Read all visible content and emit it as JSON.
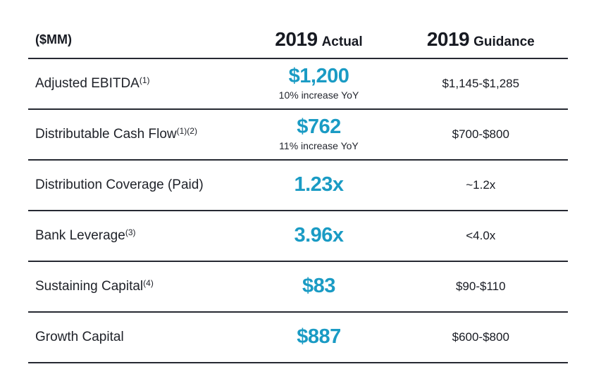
{
  "palette": {
    "accent": "#1a9bc4",
    "ink": "#171a22",
    "line": "#262932"
  },
  "header": {
    "unit_label": "($MM)",
    "actual": {
      "year": "2019",
      "label": "Actual"
    },
    "guidance": {
      "year": "2019",
      "label": "Guidance"
    }
  },
  "rows": [
    {
      "label": "Adjusted EBITDA",
      "footnote": "(1)",
      "actual": "$1,200",
      "actual_note": "10% increase YoY",
      "guidance": "$1,145-$1,285"
    },
    {
      "label": "Distributable Cash Flow",
      "footnote": "(1)(2)",
      "actual": "$762",
      "actual_note": "11% increase YoY",
      "guidance": "$700-$800"
    },
    {
      "label": "Distribution Coverage (Paid)",
      "footnote": "",
      "actual": "1.23x",
      "actual_note": "",
      "guidance": "~1.2x"
    },
    {
      "label": "Bank Leverage",
      "footnote": "(3)",
      "actual": "3.96x",
      "actual_note": "",
      "guidance": "<4.0x"
    },
    {
      "label": "Sustaining Capital",
      "footnote": "(4)",
      "actual": "$83",
      "actual_note": "",
      "guidance": "$90-$110"
    },
    {
      "label": "Growth Capital",
      "footnote": "",
      "actual": "$887",
      "actual_note": "",
      "guidance": "$600-$800"
    }
  ]
}
